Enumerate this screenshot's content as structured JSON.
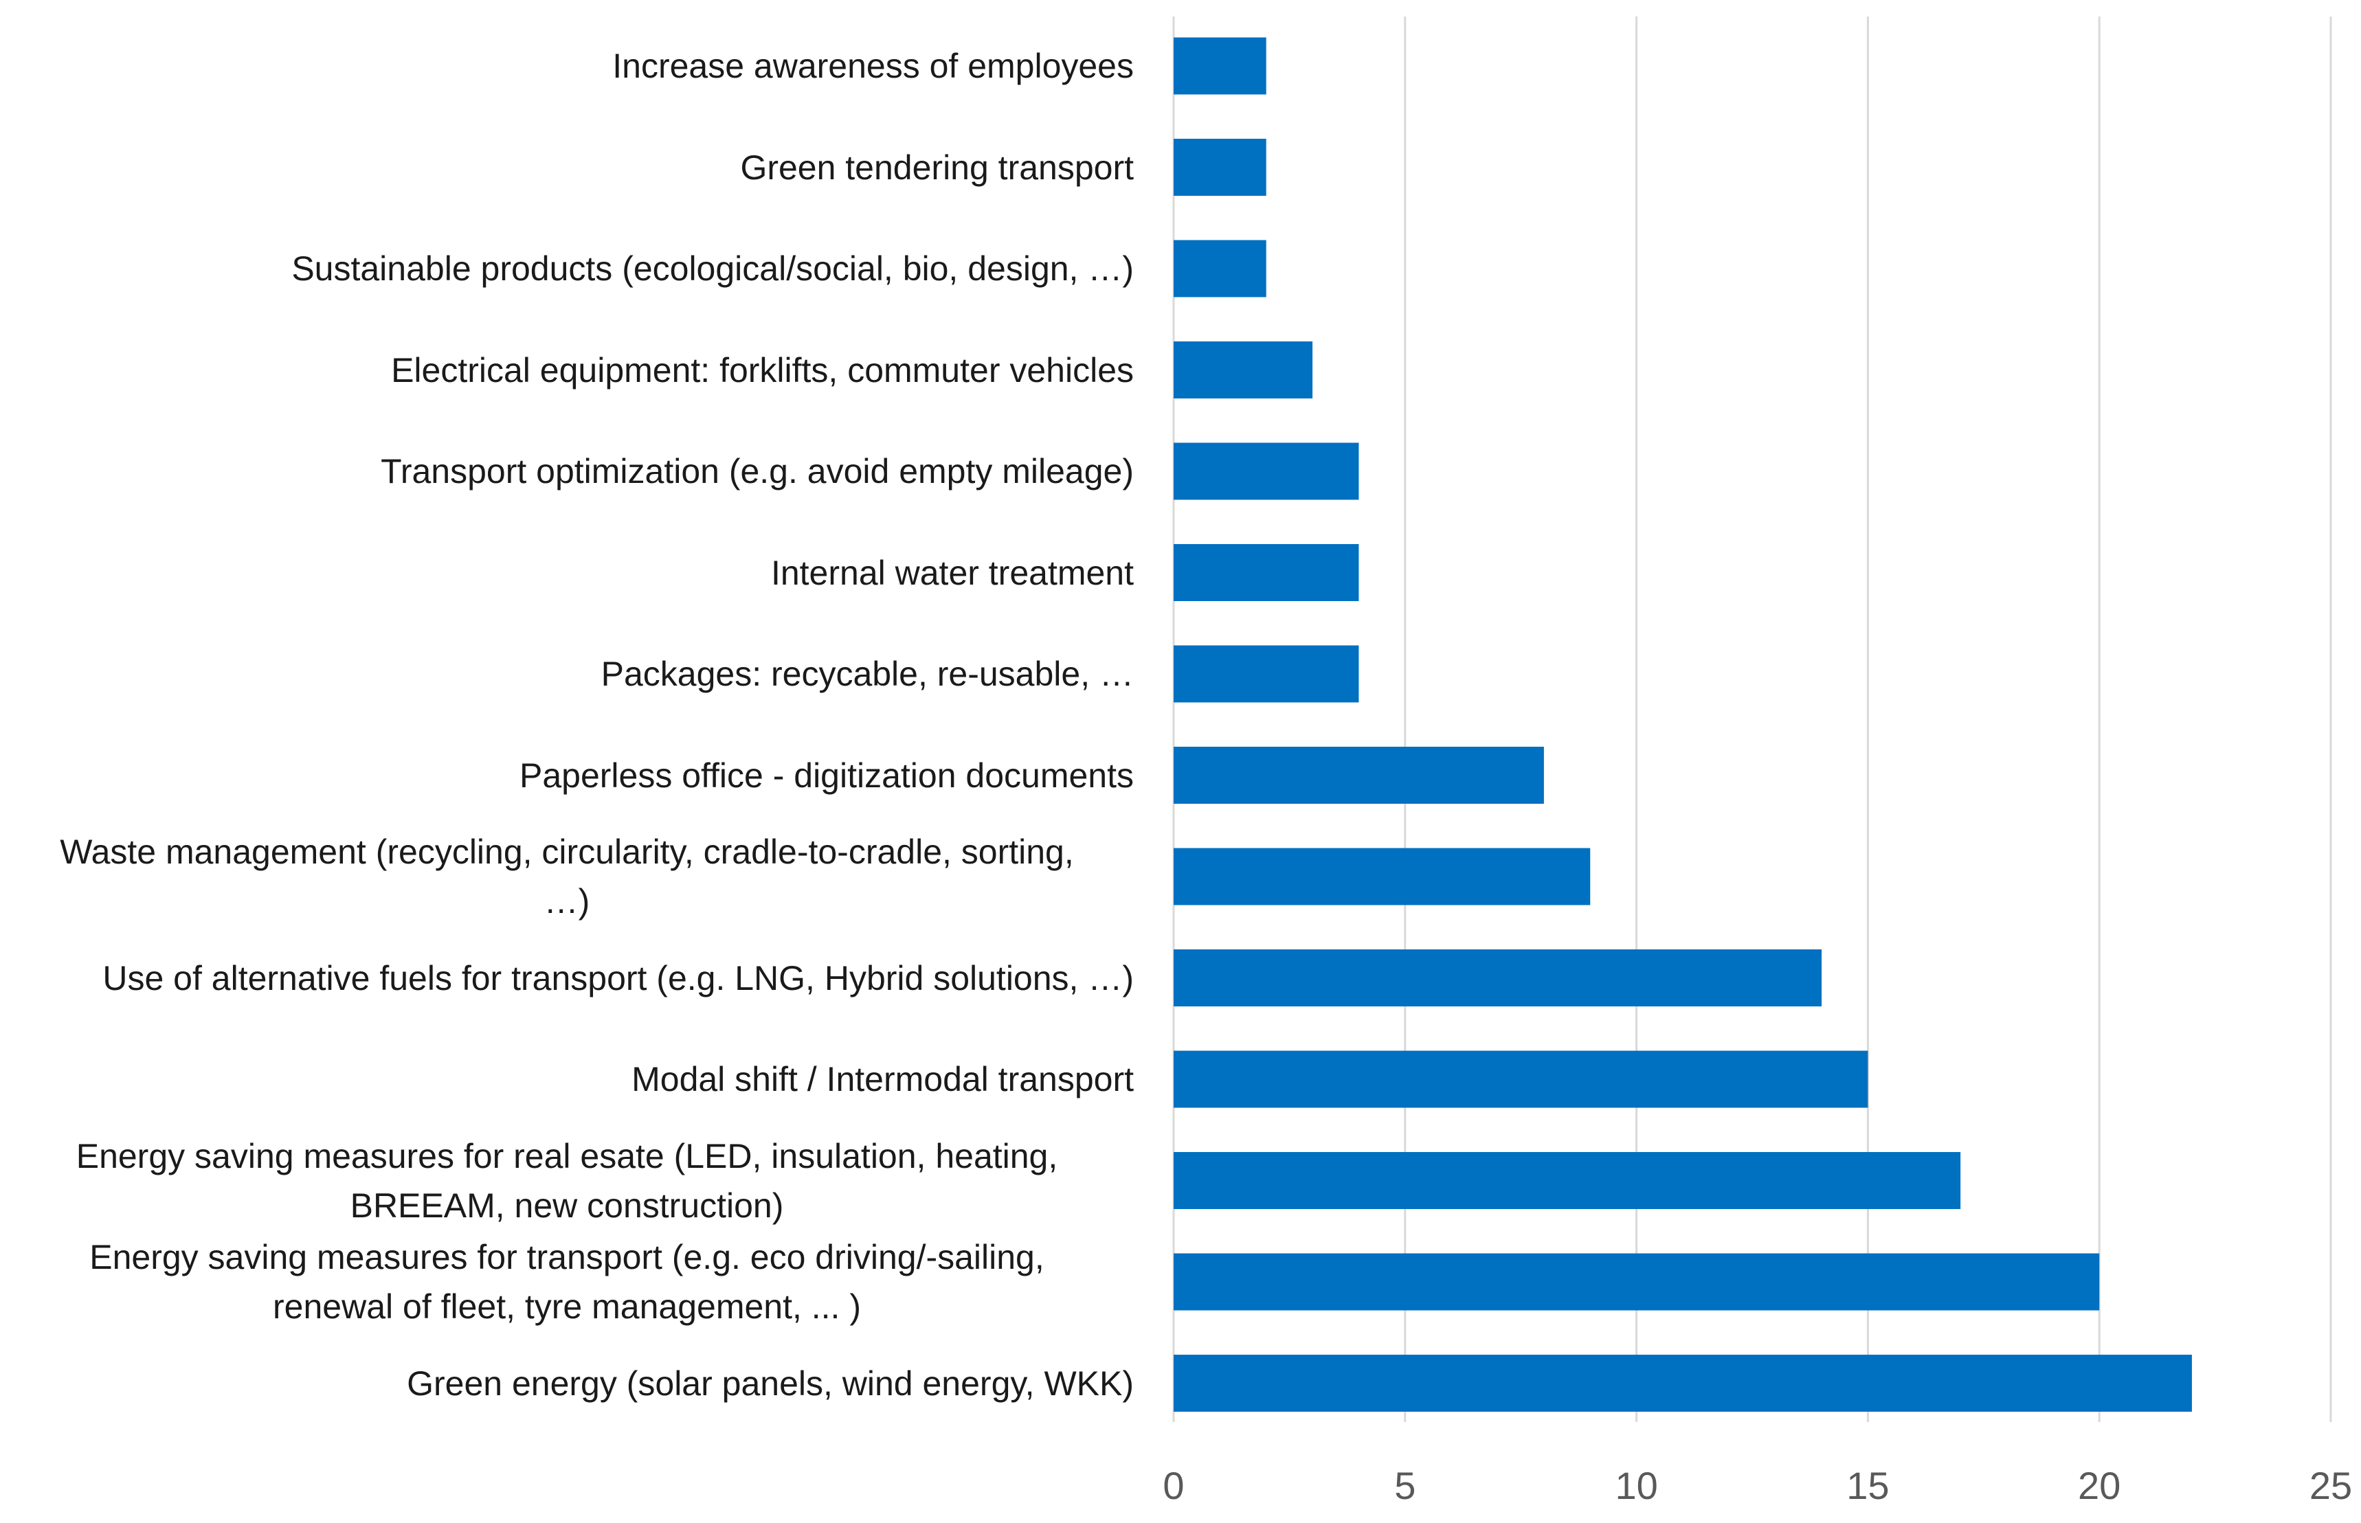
{
  "chart_data": {
    "type": "bar",
    "orientation": "horizontal",
    "title": "",
    "xlabel": "",
    "ylabel": "",
    "xlim": [
      0,
      25
    ],
    "grid": "vertical",
    "bar_color": "#0070C0",
    "categories": [
      "Increase awareness of employees",
      "Green tendering transport",
      "Sustainable products (ecological/social, bio, design, …)",
      "Electrical equipment: forklifts, commuter vehicles",
      "Transport optimization (e.g. avoid empty mileage)",
      "Internal water treatment",
      "Packages: recycable, re-usable, …",
      "Paperless office - digitization documents",
      "Waste management (recycling, circularity, cradle-to-cradle, sorting, …)",
      "Use of alternative fuels for transport (e.g. LNG, Hybrid solutions, …)",
      "Modal shift / Intermodal transport",
      "Energy saving measures for real esate (LED, insulation, heating, BREEAM, new construction)",
      "Energy saving measures for transport  (e.g. eco driving/-sailing, renewal of fleet, tyre management, ... )",
      "Green energy (solar panels, wind energy, WKK)"
    ],
    "category_lines": [
      [
        "Increase awareness of employees"
      ],
      [
        "Green tendering transport"
      ],
      [
        "Sustainable products (ecological/social, bio, design, …)"
      ],
      [
        "Electrical equipment: forklifts, commuter vehicles"
      ],
      [
        "Transport optimization (e.g. avoid empty mileage)"
      ],
      [
        "Internal water treatment"
      ],
      [
        "Packages: recycable, re-usable, …"
      ],
      [
        "Paperless office - digitization documents"
      ],
      [
        "Waste management (recycling, circularity, cradle-to-cradle, sorting,",
        "…)"
      ],
      [
        "Use of alternative fuels for transport (e.g. LNG, Hybrid solutions, …)"
      ],
      [
        "Modal shift / Intermodal transport"
      ],
      [
        "Energy saving measures for real esate (LED, insulation, heating,",
        "BREEAM, new construction)"
      ],
      [
        "Energy saving measures for transport  (e.g. eco driving/-sailing,",
        "renewal of fleet, tyre management, ... )"
      ],
      [
        "Green energy (solar panels, wind energy, WKK)"
      ]
    ],
    "values": [
      2,
      2,
      2,
      3,
      4,
      4,
      4,
      8,
      9,
      14,
      15,
      17,
      20,
      22
    ],
    "x_ticks": [
      0,
      5,
      10,
      15,
      20,
      25
    ]
  }
}
